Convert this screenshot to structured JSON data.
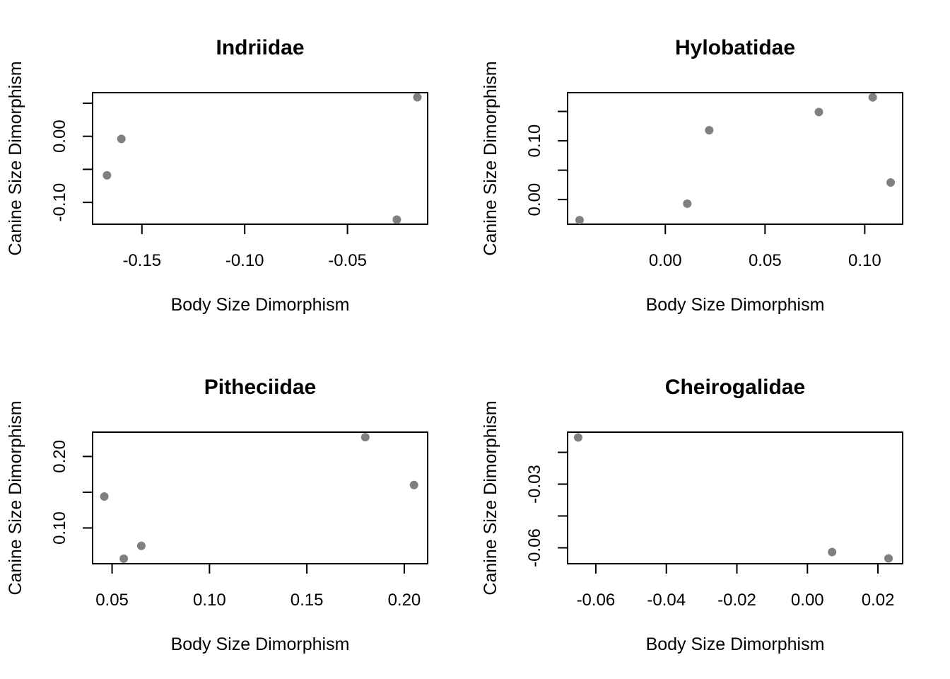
{
  "chart_data": [
    {
      "type": "scatter",
      "title": "Indriidae",
      "xlabel": "Body Size Dimorphism",
      "ylabel": "Canine Size Dimorphism",
      "x_ticks": [
        -0.15,
        -0.1,
        -0.05
      ],
      "x_tick_labels": [
        "-0.15",
        "-0.10",
        "-0.05"
      ],
      "y_ticks": [
        0.0,
        -0.1
      ],
      "y_tick_labels": [
        "0.00",
        "-0.10"
      ],
      "y_minor_ticks": [
        0.05,
        -0.05
      ],
      "xlim": [
        -0.174,
        -0.011
      ],
      "ylim": [
        -0.133,
        0.066
      ],
      "points": [
        {
          "x": -0.016,
          "y": 0.059
        },
        {
          "x": -0.16,
          "y": -0.004
        },
        {
          "x": -0.167,
          "y": -0.059
        },
        {
          "x": -0.026,
          "y": -0.126
        }
      ]
    },
    {
      "type": "scatter",
      "title": "Hylobatidae",
      "xlabel": "Body Size Dimorphism",
      "ylabel": "Canine Size Dimorphism",
      "x_ticks": [
        0.0,
        0.05,
        0.1
      ],
      "x_tick_labels": [
        "0.00",
        "0.05",
        "0.10"
      ],
      "y_ticks": [
        0.0,
        0.1
      ],
      "y_tick_labels": [
        "0.00",
        "0.10"
      ],
      "y_minor_ticks": [
        0.05,
        0.15
      ],
      "xlim": [
        -0.049,
        0.119
      ],
      "ylim": [
        -0.042,
        0.182
      ],
      "points": [
        {
          "x": 0.104,
          "y": 0.174
        },
        {
          "x": 0.077,
          "y": 0.149
        },
        {
          "x": 0.022,
          "y": 0.118
        },
        {
          "x": 0.113,
          "y": 0.029
        },
        {
          "x": 0.011,
          "y": -0.007
        },
        {
          "x": -0.043,
          "y": -0.035
        }
      ]
    },
    {
      "type": "scatter",
      "title": "Pitheciidae",
      "xlabel": "Body Size Dimorphism",
      "ylabel": "Canine Size Dimorphism",
      "x_ticks": [
        0.05,
        0.1,
        0.15,
        0.2
      ],
      "x_tick_labels": [
        "0.05",
        "0.10",
        "0.15",
        "0.20"
      ],
      "y_ticks": [
        0.1,
        0.2
      ],
      "y_tick_labels": [
        "0.10",
        "0.20"
      ],
      "y_minor_ticks": [
        0.15
      ],
      "xlim": [
        0.04,
        0.212
      ],
      "ylim": [
        0.05,
        0.234
      ],
      "points": [
        {
          "x": 0.18,
          "y": 0.227
        },
        {
          "x": 0.205,
          "y": 0.16
        },
        {
          "x": 0.046,
          "y": 0.144
        },
        {
          "x": 0.065,
          "y": 0.075
        },
        {
          "x": 0.056,
          "y": 0.057
        }
      ]
    },
    {
      "type": "scatter",
      "title": "Cheirogalidae",
      "xlabel": "Body Size Dimorphism",
      "ylabel": "Canine Size Dimorphism",
      "x_ticks": [
        -0.06,
        -0.04,
        -0.02,
        0.0,
        0.02
      ],
      "x_tick_labels": [
        "-0.06",
        "-0.04",
        "-0.02",
        "0.00",
        "0.02"
      ],
      "y_ticks": [
        -0.03,
        -0.06
      ],
      "y_tick_labels": [
        "-0.03",
        "-0.06"
      ],
      "y_minor_ticks": [
        -0.015,
        -0.045
      ],
      "xlim": [
        -0.068,
        0.027
      ],
      "ylim": [
        -0.0675,
        -0.0055
      ],
      "points": [
        {
          "x": -0.065,
          "y": -0.008
        },
        {
          "x": 0.007,
          "y": -0.062
        },
        {
          "x": 0.023,
          "y": -0.065
        }
      ]
    }
  ]
}
